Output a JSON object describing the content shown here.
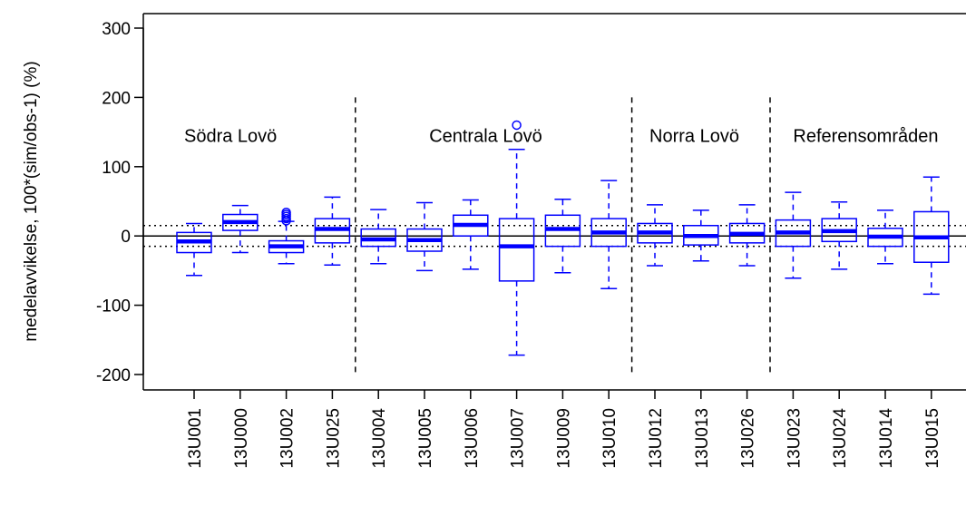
{
  "chart_data": {
    "type": "box",
    "title": "",
    "xlabel": "",
    "ylabel": "medelavvikelse, 100*(sim/obs-1) (%)",
    "ylim": [
      -200,
      300
    ],
    "yticks": [
      -200,
      -100,
      0,
      100,
      200,
      300
    ],
    "ytick_labels": [
      "-200",
      "-100",
      "0",
      "100",
      "200",
      "300"
    ],
    "reference_lines": {
      "solid": 0,
      "dotted": [
        15,
        -15
      ]
    },
    "colors": {
      "box": "#0000ff",
      "reference": "#000000"
    },
    "categories": [
      "13U001",
      "13U000",
      "13U002",
      "13U025",
      "13U004",
      "13U005",
      "13U006",
      "13U007",
      "13U009",
      "13U010",
      "13U012",
      "13U013",
      "13U026",
      "13U023",
      "13U024",
      "13U014",
      "13U015"
    ],
    "boxes": [
      {
        "q1": -24,
        "median": -8,
        "q3": 5,
        "whisker_low": -57,
        "whisker_high": 18,
        "outliers": []
      },
      {
        "q1": 8,
        "median": 20,
        "q3": 31,
        "whisker_low": -24,
        "whisker_high": 44,
        "outliers": []
      },
      {
        "q1": -24,
        "median": -15,
        "q3": -7,
        "whisker_low": -40,
        "whisker_high": 21,
        "outliers": [
          34,
          31,
          28,
          25,
          22
        ]
      },
      {
        "q1": -10,
        "median": 10,
        "q3": 25,
        "whisker_low": -42,
        "whisker_high": 56,
        "outliers": []
      },
      {
        "q1": -15,
        "median": -5,
        "q3": 10,
        "whisker_low": -40,
        "whisker_high": 38,
        "outliers": []
      },
      {
        "q1": -22,
        "median": -6,
        "q3": 10,
        "whisker_low": -50,
        "whisker_high": 48,
        "outliers": []
      },
      {
        "q1": 0,
        "median": 16,
        "q3": 30,
        "whisker_low": -48,
        "whisker_high": 52,
        "outliers": []
      },
      {
        "q1": -65,
        "median": -15,
        "q3": 25,
        "whisker_low": -172,
        "whisker_high": 125,
        "outliers": [
          160
        ]
      },
      {
        "q1": -15,
        "median": 10,
        "q3": 30,
        "whisker_low": -53,
        "whisker_high": 53,
        "outliers": []
      },
      {
        "q1": -15,
        "median": 5,
        "q3": 25,
        "whisker_low": -76,
        "whisker_high": 80,
        "outliers": []
      },
      {
        "q1": -10,
        "median": 5,
        "q3": 18,
        "whisker_low": -43,
        "whisker_high": 45,
        "outliers": []
      },
      {
        "q1": -13,
        "median": 0,
        "q3": 15,
        "whisker_low": -36,
        "whisker_high": 37,
        "outliers": []
      },
      {
        "q1": -10,
        "median": 3,
        "q3": 18,
        "whisker_low": -43,
        "whisker_high": 45,
        "outliers": []
      },
      {
        "q1": -15,
        "median": 5,
        "q3": 23,
        "whisker_low": -61,
        "whisker_high": 63,
        "outliers": []
      },
      {
        "q1": -8,
        "median": 7,
        "q3": 25,
        "whisker_low": -48,
        "whisker_high": 49,
        "outliers": []
      },
      {
        "q1": -15,
        "median": -1,
        "q3": 11,
        "whisker_low": -40,
        "whisker_high": 37,
        "outliers": []
      },
      {
        "q1": -38,
        "median": -2,
        "q3": 35,
        "whisker_low": -84,
        "whisker_high": 85,
        "outliers": []
      }
    ],
    "region_dividers_after": [
      3,
      9,
      12
    ],
    "region_labels": [
      {
        "text": "Södra Lovö",
        "from": 0,
        "to": 3
      },
      {
        "text": "Centrala Lovö",
        "from": 4,
        "to": 9
      },
      {
        "text": "Norra Lovö",
        "from": 10,
        "to": 12
      },
      {
        "text": "Referensområden",
        "from": 13,
        "to": 16
      }
    ],
    "region_label_value": 145,
    "divider_range": [
      -200,
      200
    ],
    "grid": false,
    "legend": "none"
  }
}
